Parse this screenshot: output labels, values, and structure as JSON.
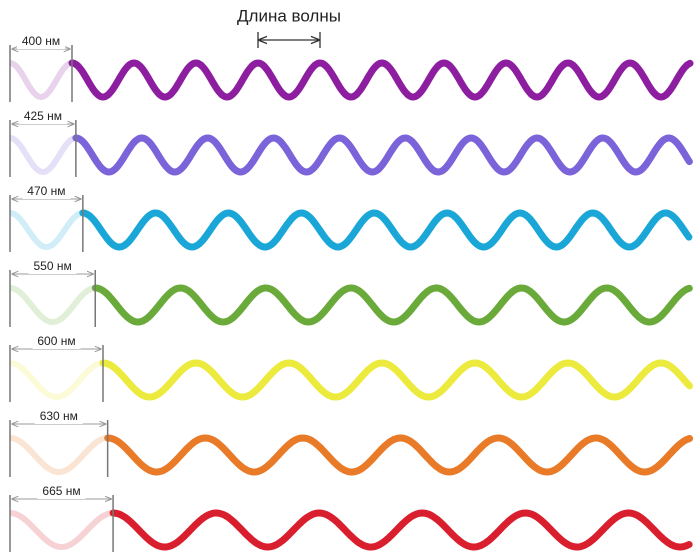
{
  "title": "Длина волны",
  "waves": [
    {
      "wavelength": 400,
      "label": "400 нм",
      "color": "#8e1ea0"
    },
    {
      "wavelength": 425,
      "label": "425 нм",
      "color": "#7b63d9"
    },
    {
      "wavelength": 470,
      "label": "470 нм",
      "color": "#1aa7d8"
    },
    {
      "wavelength": 550,
      "label": "550 нм",
      "color": "#6aaa3a"
    },
    {
      "wavelength": 600,
      "label": "600 нм",
      "color": "#ecea3c"
    },
    {
      "wavelength": 630,
      "label": "630 нм",
      "color": "#e87a28"
    },
    {
      "wavelength": 665,
      "label": "665 нм",
      "color": "#d91f2e"
    }
  ]
}
